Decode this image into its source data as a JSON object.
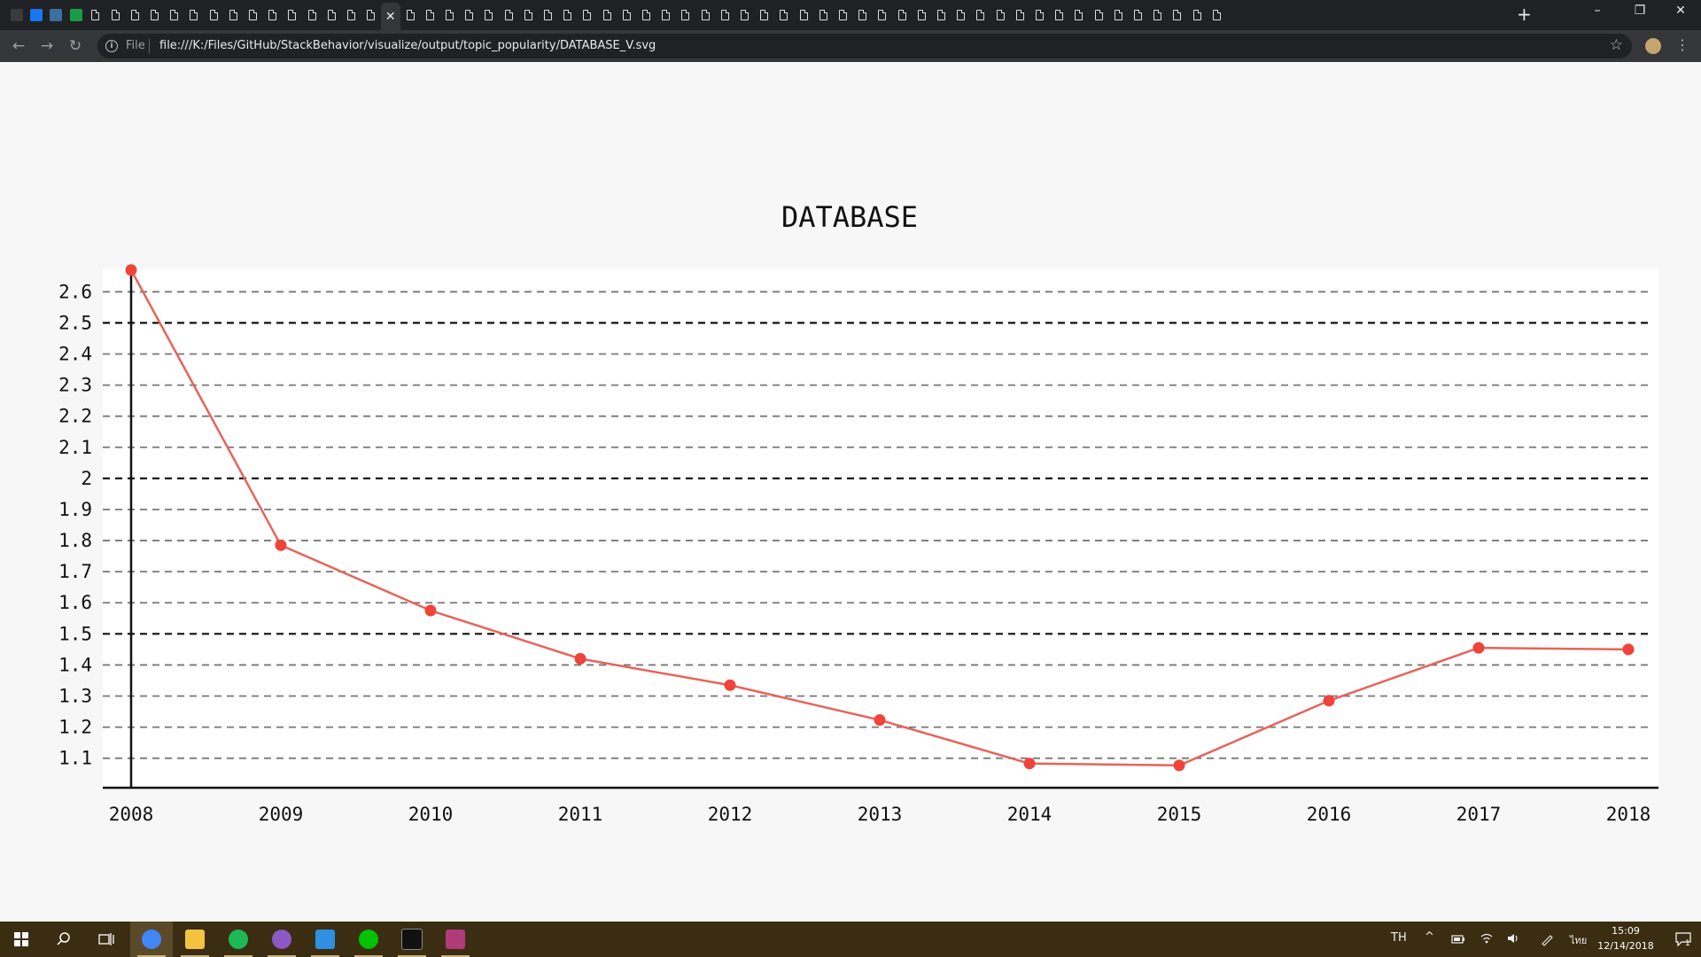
{
  "browser": {
    "tab_count": 62,
    "active_tab_index": 19,
    "close_glyph": "✕",
    "new_tab_glyph": "+",
    "window_controls": {
      "minimize": "–",
      "restore": "❐",
      "close": "✕"
    },
    "nav": {
      "back": "←",
      "forward": "→",
      "reload": "↻"
    },
    "address": {
      "scheme_label": "File",
      "url": "file:///K:/Files/GitHub/StackBehavior/visualize/output/topic_popularity/DATABASE_V.svg"
    },
    "bookmark_glyph": "☆",
    "menu_glyph": "⋮"
  },
  "chart_data": {
    "type": "line",
    "title": "DATABASE",
    "xlabel": "",
    "ylabel": "",
    "x": [
      2008,
      2009,
      2010,
      2011,
      2012,
      2013,
      2014,
      2015,
      2016,
      2017,
      2018
    ],
    "x_tick_labels": [
      "2008",
      "2009",
      "2010",
      "2011",
      "2012",
      "2013",
      "2014",
      "2015",
      "2016",
      "2017",
      "2018"
    ],
    "series": [
      {
        "values": [
          2.67,
          1.785,
          1.575,
          1.42,
          1.335,
          1.223,
          1.083,
          1.077,
          1.285,
          1.455,
          1.45
        ]
      }
    ],
    "ylim": [
      1.045,
      2.675
    ],
    "y_ticks": [
      1.1,
      1.2,
      1.3,
      1.4,
      1.5,
      1.6,
      1.7,
      1.8,
      1.9,
      2,
      2.1,
      2.2,
      2.3,
      2.4,
      2.5,
      2.6
    ],
    "y_tick_labels": [
      "1.1",
      "1.2",
      "1.3",
      "1.4",
      "1.5",
      "1.6",
      "1.7",
      "1.8",
      "1.9",
      "2",
      "2.1",
      "2.2",
      "2.3",
      "2.4",
      "2.5",
      "2.6"
    ],
    "major_grid_values": [
      1.5,
      2,
      2.5
    ],
    "grid": true,
    "legend": "none",
    "colors": {
      "line": "#e8635a",
      "point": "#f0433a",
      "grid_minor": "#777777",
      "grid_major": "#111111",
      "axis": "#111111",
      "plot_bg": "#ffffff",
      "page_bg": "#f7f7f7"
    }
  },
  "taskbar": {
    "apps": [
      {
        "name": "chrome",
        "color": "#4285f4"
      },
      {
        "name": "file-explorer",
        "color": "#f3c340"
      },
      {
        "name": "spotify",
        "color": "#1db954"
      },
      {
        "name": "github-desktop",
        "color": "#8b58c4"
      },
      {
        "name": "vscode",
        "color": "#2f8fe0"
      },
      {
        "name": "line",
        "color": "#00c300"
      },
      {
        "name": "terminal",
        "color": "#111111"
      },
      {
        "name": "winrar",
        "color": "#b03a7a"
      }
    ],
    "tray_language": "TH",
    "tray_ime": "ไทย",
    "clock_time": "15:09",
    "clock_date": "12/14/2018",
    "notification_count": "1"
  }
}
